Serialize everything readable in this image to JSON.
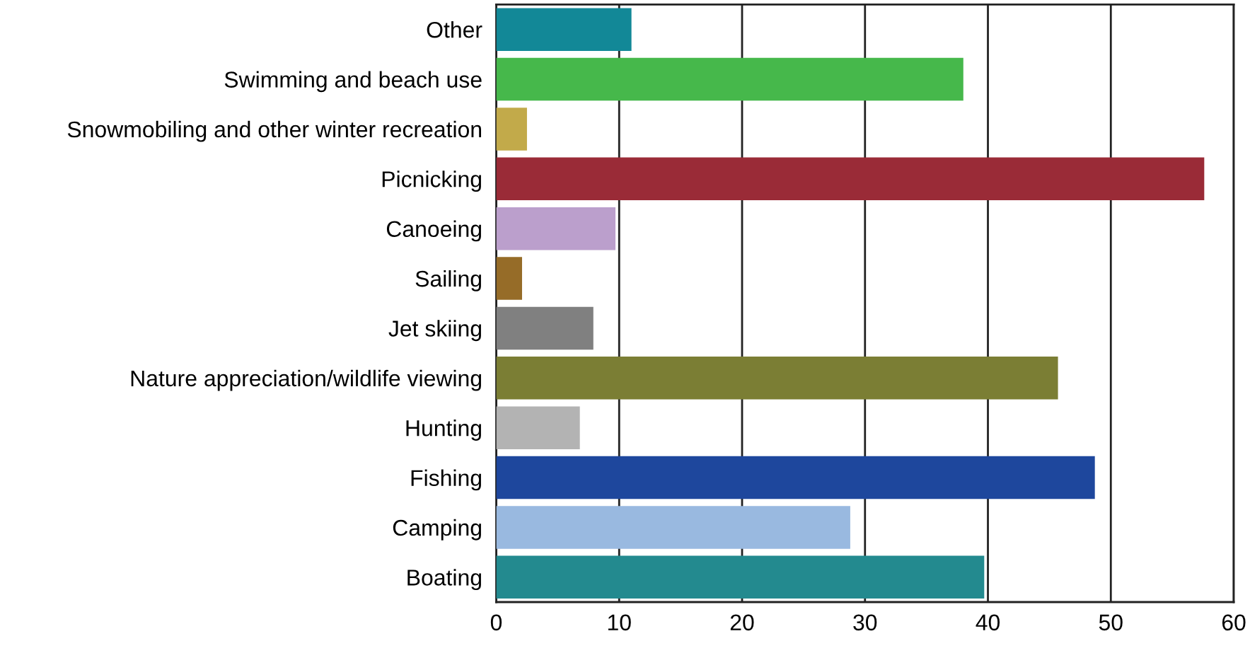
{
  "chart_data": {
    "type": "bar",
    "orientation": "horizontal",
    "categories": [
      "Other",
      "Swimming and beach use",
      "Snowmobiling and other winter recreation",
      "Picnicking",
      "Canoeing",
      "Sailing",
      "Jet skiing",
      "Nature appreciation/wildlife viewing",
      "Hunting",
      "Fishing",
      "Camping",
      "Boating"
    ],
    "values": [
      11,
      38,
      2.5,
      57.6,
      9.7,
      2.1,
      7.9,
      45.7,
      6.8,
      48.7,
      28.8,
      39.7
    ],
    "colors": [
      "#128897",
      "#46b84b",
      "#c2aa4a",
      "#9a2b37",
      "#bb9fcc",
      "#966c28",
      "#808080",
      "#7b7e34",
      "#b3b3b3",
      "#1e479d",
      "#99b9e0",
      "#238a8f"
    ],
    "xlim": [
      0,
      60
    ],
    "xticks": [
      0,
      10,
      20,
      30,
      40,
      50,
      60
    ],
    "grid": "x"
  }
}
